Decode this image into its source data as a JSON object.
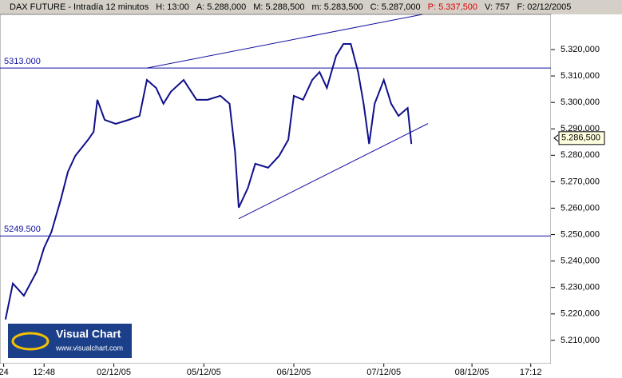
{
  "header": [
    {
      "label": "DAX FUTURE - Intradía 12 minutos"
    },
    {
      "label": "H: 13:00"
    },
    {
      "label": "A: 5.288,000"
    },
    {
      "label": "M: 5.288,500"
    },
    {
      "label": "m: 5.283,500"
    },
    {
      "label": "C: 5.287,000"
    },
    {
      "label": "P: 5.337,500",
      "color": "#e00000"
    },
    {
      "label": "V: 757"
    },
    {
      "label": "F: 02/12/2005"
    }
  ],
  "logo": {
    "title": "Visual Chart",
    "url": "www.visualchart.com"
  },
  "chart_data": {
    "type": "line",
    "xlim": [
      0,
      300
    ],
    "xticks": [
      {
        "value": 2,
        "label": "24"
      },
      {
        "value": 24,
        "label": "12:48"
      },
      {
        "value": 62,
        "label": "02/12/05"
      },
      {
        "value": 111,
        "label": "05/12/05"
      },
      {
        "value": 160,
        "label": "06/12/05"
      },
      {
        "value": 209,
        "label": "07/12/05"
      },
      {
        "value": 257,
        "label": "08/12/05"
      },
      {
        "value": 289,
        "label": "17:12"
      }
    ],
    "ylim": [
      5201.2,
      5333.3
    ],
    "yticks": [
      {
        "value": 5210,
        "label": "5.210,000"
      },
      {
        "value": 5220,
        "label": "5.220,000"
      },
      {
        "value": 5230,
        "label": "5.230,000"
      },
      {
        "value": 5240,
        "label": "5.240,000"
      },
      {
        "value": 5250,
        "label": "5.250,000"
      },
      {
        "value": 5260,
        "label": "5.260,000"
      },
      {
        "value": 5270,
        "label": "5.270,000"
      },
      {
        "value": 5280,
        "label": "5.280,000"
      },
      {
        "value": 5290,
        "label": "5.290,000"
      },
      {
        "value": 5300,
        "label": "5.300,000"
      },
      {
        "value": 5310,
        "label": "5.310,000"
      },
      {
        "value": 5320,
        "label": "5.320,000"
      }
    ],
    "grid": false,
    "series": [
      {
        "color": "#10108a",
        "x": [
          3,
          7,
          13,
          20,
          24,
          28,
          33,
          37,
          41,
          48,
          51,
          53,
          57,
          63,
          70,
          76,
          80,
          85,
          89,
          93,
          100,
          107,
          113,
          120,
          125,
          128,
          130,
          135,
          139,
          146,
          152,
          157,
          160,
          165,
          170,
          174,
          178,
          183,
          187,
          191,
          195,
          198,
          201,
          204,
          209,
          213,
          217,
          222,
          224
        ],
        "values": [
          5217.9,
          5231.5,
          5226.9,
          5236,
          5245,
          5251,
          5263,
          5273.8,
          5279.8,
          5285.9,
          5288.9,
          5301,
          5293.4,
          5291.9,
          5293.4,
          5294.9,
          5308.5,
          5305.5,
          5299.5,
          5304,
          5308.5,
          5301,
          5301,
          5302.5,
          5299.5,
          5281.3,
          5260.2,
          5267.7,
          5276.8,
          5275.3,
          5279.8,
          5285.9,
          5302.5,
          5301,
          5308.5,
          5311.5,
          5305.5,
          5317.6,
          5322.1,
          5322.1,
          5311.5,
          5299.5,
          5284.3,
          5299.5,
          5308.5,
          5299.5,
          5294.9,
          5297.9,
          5284.3
        ]
      }
    ],
    "hlines": [
      {
        "value": 5313,
        "label": "5313.000"
      },
      {
        "value": 5249.5,
        "label": "5249.500"
      }
    ],
    "trendlines": [
      {
        "x": [
          80,
          230
        ],
        "values": [
          5313,
          5333.3
        ]
      },
      {
        "x": [
          130,
          233
        ],
        "values": [
          5256,
          5292
        ]
      }
    ],
    "last": {
      "value": 5286.5,
      "label": "5.286,500"
    }
  }
}
